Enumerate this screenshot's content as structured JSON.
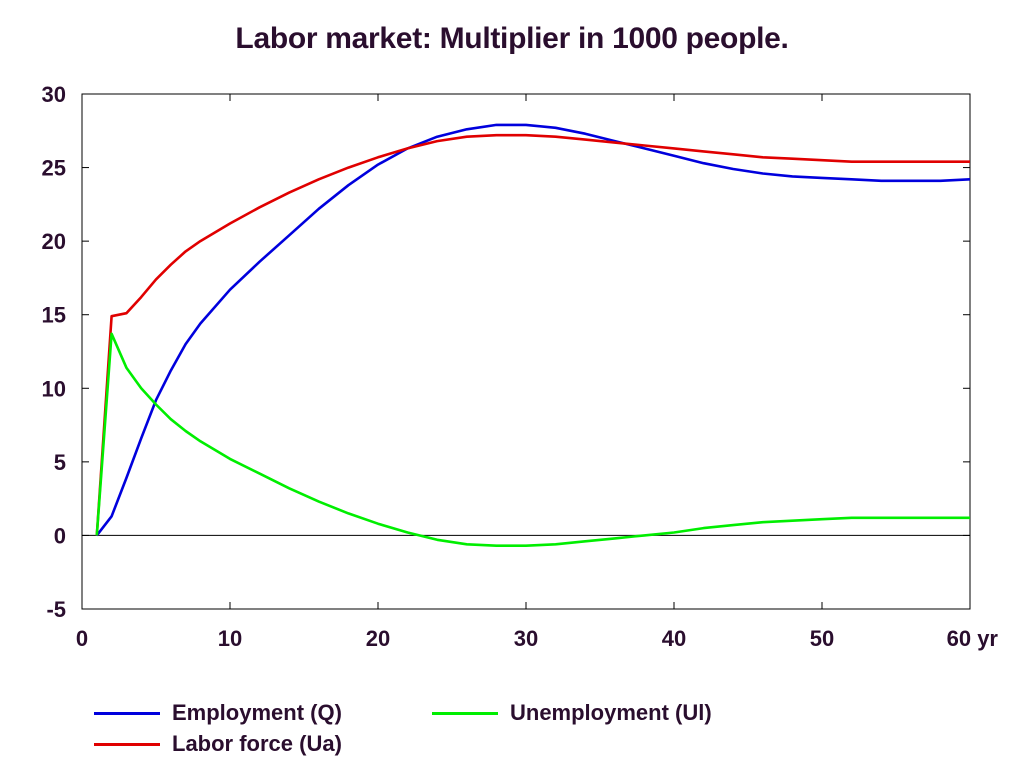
{
  "chart_data": {
    "type": "line",
    "title": "Labor market: Multiplier in 1000 people.",
    "xlabel": "",
    "ylabel": "",
    "xlim": [
      0,
      60
    ],
    "ylim": [
      -5,
      30
    ],
    "x_ticks": [
      0,
      10,
      20,
      30,
      40,
      50,
      60
    ],
    "x_tick_labels": [
      "0",
      "10",
      "20",
      "30",
      "40",
      "50",
      "60 yr"
    ],
    "y_ticks": [
      -5,
      0,
      5,
      10,
      15,
      20,
      25,
      30
    ],
    "y_tick_labels": [
      "-5",
      "0",
      "5",
      "10",
      "15",
      "20",
      "25",
      "30"
    ],
    "grid": false,
    "legend_position": "bottom",
    "x": [
      1,
      2,
      3,
      4,
      5,
      6,
      7,
      8,
      10,
      12,
      14,
      16,
      18,
      20,
      22,
      24,
      26,
      28,
      30,
      32,
      34,
      36,
      38,
      40,
      42,
      44,
      46,
      48,
      50,
      52,
      54,
      56,
      58,
      60
    ],
    "series": [
      {
        "name": "Employment (Q)",
        "color": "#0000dd",
        "values": [
          0,
          1.3,
          3.9,
          6.6,
          9.2,
          11.2,
          13.0,
          14.4,
          16.7,
          18.6,
          20.4,
          22.2,
          23.8,
          25.2,
          26.3,
          27.1,
          27.6,
          27.9,
          27.9,
          27.7,
          27.3,
          26.8,
          26.3,
          25.8,
          25.3,
          24.9,
          24.6,
          24.4,
          24.3,
          24.2,
          24.1,
          24.1,
          24.1,
          24.2
        ]
      },
      {
        "name": "Labor force (Ua)",
        "color": "#e00000",
        "values": [
          0,
          14.9,
          15.1,
          16.2,
          17.4,
          18.4,
          19.3,
          20.0,
          21.2,
          22.3,
          23.3,
          24.2,
          25.0,
          25.7,
          26.3,
          26.8,
          27.1,
          27.2,
          27.2,
          27.1,
          26.9,
          26.7,
          26.5,
          26.3,
          26.1,
          25.9,
          25.7,
          25.6,
          25.5,
          25.4,
          25.4,
          25.4,
          25.4,
          25.4
        ]
      },
      {
        "name": "Unemployment (Ul)",
        "color": "#00ee00",
        "values": [
          0,
          13.7,
          11.4,
          10.0,
          8.9,
          7.9,
          7.1,
          6.4,
          5.2,
          4.2,
          3.2,
          2.3,
          1.5,
          0.8,
          0.2,
          -0.3,
          -0.6,
          -0.7,
          -0.7,
          -0.6,
          -0.4,
          -0.2,
          0.0,
          0.2,
          0.5,
          0.7,
          0.9,
          1.0,
          1.1,
          1.2,
          1.2,
          1.2,
          1.2,
          1.2
        ]
      }
    ]
  }
}
